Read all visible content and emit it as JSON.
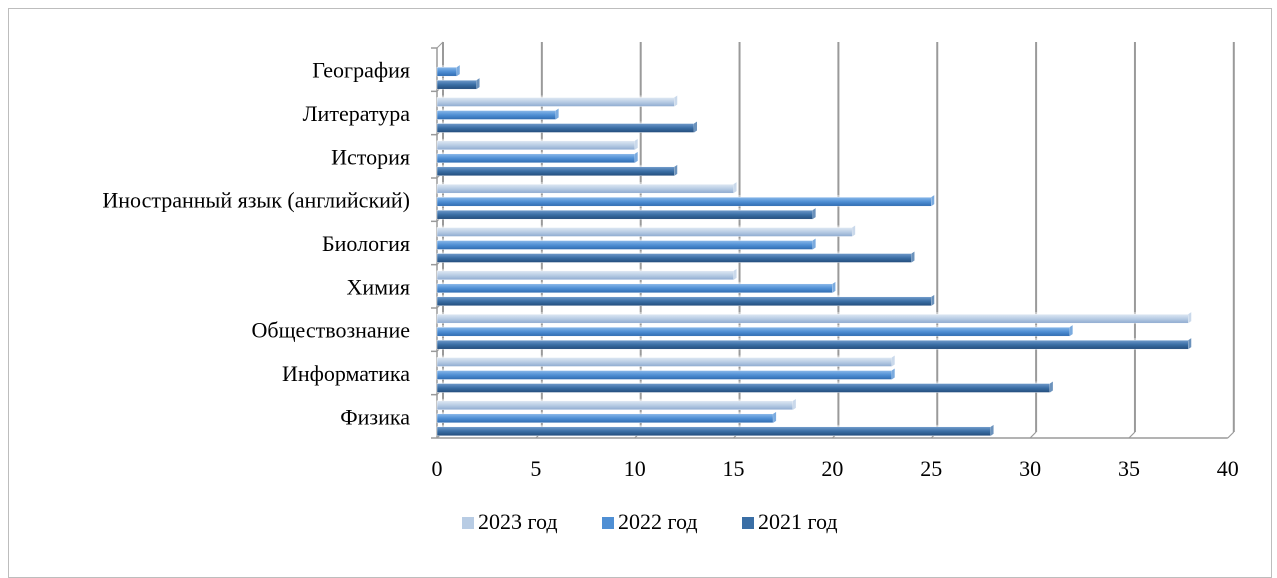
{
  "chart_data": {
    "type": "bar",
    "orientation": "horizontal",
    "categories": [
      "Физика",
      "Информатика",
      "Обществознание",
      "Химия",
      "Биология",
      "Иностранный язык (английский)",
      "История",
      "Литература",
      "География"
    ],
    "series": [
      {
        "name": "2023 год",
        "color": "#b8cce4",
        "values": [
          18,
          23,
          38,
          15,
          21,
          15,
          10,
          12,
          0
        ]
      },
      {
        "name": "2022 год",
        "color": "#4f8fd4",
        "values": [
          17,
          23,
          32,
          20,
          19,
          25,
          10,
          6,
          1
        ]
      },
      {
        "name": "2021 год",
        "color": "#3a6ea5",
        "values": [
          28,
          31,
          38,
          25,
          24,
          19,
          12,
          13,
          2
        ]
      }
    ],
    "xlim": [
      0,
      40
    ],
    "xticks": [
      "0",
      "5",
      "10",
      "15",
      "20",
      "25",
      "30",
      "35",
      "40"
    ],
    "grid": true,
    "legend_position": "bottom"
  }
}
